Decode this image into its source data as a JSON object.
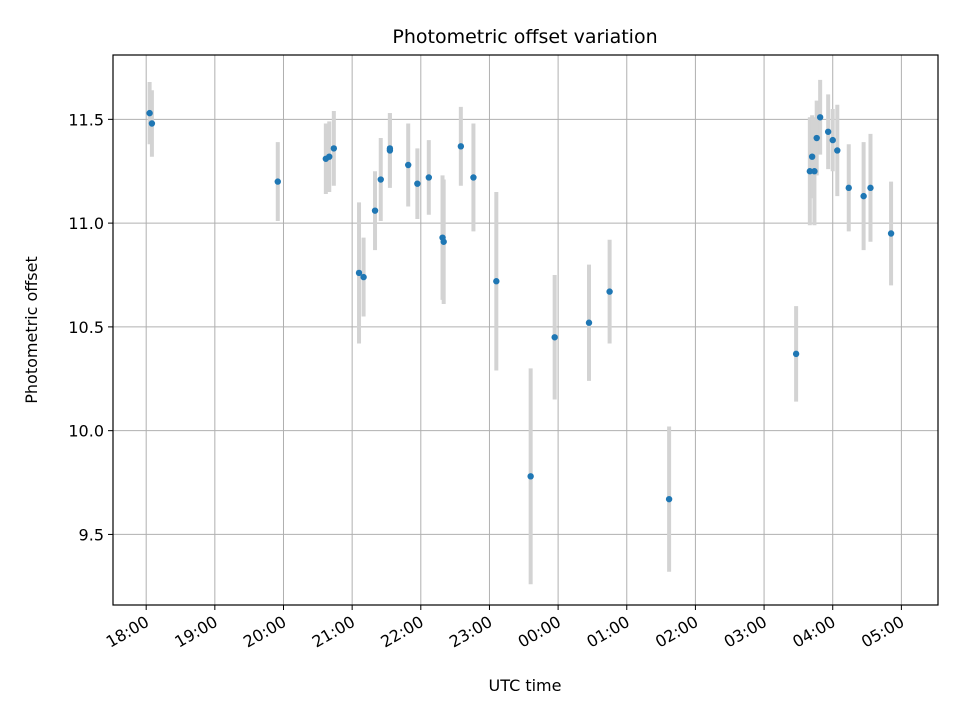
{
  "chart_data": {
    "type": "scatter",
    "title": "Photometric offset variation",
    "xlabel": "UTC time",
    "ylabel": "Photometric offset",
    "x_unit": "UTC time (HH:MM)",
    "xlim": [
      "17:31",
      "05:32"
    ],
    "ylim": [
      9.16,
      11.81
    ],
    "xticks": [
      "18:00",
      "19:00",
      "20:00",
      "21:00",
      "22:00",
      "23:00",
      "00:00",
      "01:00",
      "02:00",
      "03:00",
      "04:00",
      "05:00"
    ],
    "yticks": [
      9.5,
      10.0,
      10.5,
      11.0,
      11.5
    ],
    "ytick_labels": [
      "9.5",
      "10.0",
      "10.5",
      "11.0",
      "11.5"
    ],
    "grid": true,
    "colors": {
      "points": "#1f77b4",
      "errorbars": "#d3d3d3",
      "grid": "#b0b0b0"
    },
    "series": [
      {
        "points": [
          {
            "x": "18:03",
            "y": 11.53,
            "err": 0.15
          },
          {
            "x": "18:05",
            "y": 11.48,
            "err": 0.16
          },
          {
            "x": "19:55",
            "y": 11.2,
            "err": 0.19
          },
          {
            "x": "20:37",
            "y": 11.31,
            "err": 0.17
          },
          {
            "x": "20:40",
            "y": 11.32,
            "err": 0.17
          },
          {
            "x": "20:44",
            "y": 11.36,
            "err": 0.18
          },
          {
            "x": "21:06",
            "y": 10.76,
            "err": 0.34
          },
          {
            "x": "21:10",
            "y": 10.74,
            "err": 0.19
          },
          {
            "x": "21:20",
            "y": 11.06,
            "err": 0.19
          },
          {
            "x": "21:25",
            "y": 11.21,
            "err": 0.2
          },
          {
            "x": "21:33",
            "y": 11.35,
            "err": 0.18
          },
          {
            "x": "21:33",
            "y": 11.36,
            "err": 0.17
          },
          {
            "x": "21:49",
            "y": 11.28,
            "err": 0.2
          },
          {
            "x": "21:57",
            "y": 11.19,
            "err": 0.17
          },
          {
            "x": "22:07",
            "y": 11.22,
            "err": 0.18
          },
          {
            "x": "22:19",
            "y": 10.93,
            "err": 0.3
          },
          {
            "x": "22:20",
            "y": 10.91,
            "err": 0.3
          },
          {
            "x": "22:35",
            "y": 11.37,
            "err": 0.19
          },
          {
            "x": "22:46",
            "y": 11.22,
            "err": 0.26
          },
          {
            "x": "23:06",
            "y": 10.72,
            "err": 0.43
          },
          {
            "x": "23:36",
            "y": 9.78,
            "err": 0.52
          },
          {
            "x": "23:57",
            "y": 10.45,
            "err": 0.3
          },
          {
            "x": "00:27",
            "y": 10.52,
            "err": 0.28
          },
          {
            "x": "00:45",
            "y": 10.67,
            "err": 0.25
          },
          {
            "x": "01:37",
            "y": 9.67,
            "err": 0.35
          },
          {
            "x": "03:28",
            "y": 10.37,
            "err": 0.23
          },
          {
            "x": "03:40",
            "y": 11.25,
            "err": 0.26
          },
          {
            "x": "03:42",
            "y": 11.32,
            "err": 0.2
          },
          {
            "x": "03:44",
            "y": 11.25,
            "err": 0.26
          },
          {
            "x": "03:46",
            "y": 11.41,
            "err": 0.18
          },
          {
            "x": "03:49",
            "y": 11.51,
            "err": 0.18
          },
          {
            "x": "03:56",
            "y": 11.44,
            "err": 0.18
          },
          {
            "x": "04:00",
            "y": 11.4,
            "err": 0.15
          },
          {
            "x": "04:04",
            "y": 11.35,
            "err": 0.22
          },
          {
            "x": "04:14",
            "y": 11.17,
            "err": 0.21
          },
          {
            "x": "04:27",
            "y": 11.13,
            "err": 0.26
          },
          {
            "x": "04:33",
            "y": 11.17,
            "err": 0.26
          },
          {
            "x": "04:51",
            "y": 10.95,
            "err": 0.25
          }
        ]
      }
    ]
  }
}
